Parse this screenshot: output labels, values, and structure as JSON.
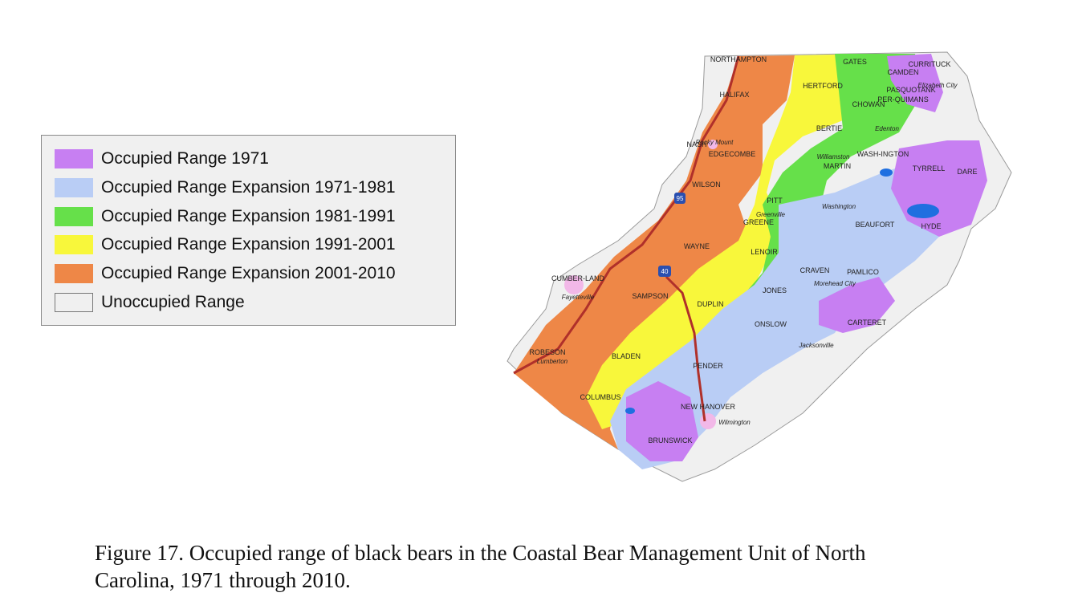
{
  "legend": {
    "items": [
      {
        "label": "Occupied Range 1971",
        "color": "#c77ff2"
      },
      {
        "label": "Occupied Range Expansion 1971-1981",
        "color": "#b9cdf5"
      },
      {
        "label": "Occupied Range Expansion 1981-1991",
        "color": "#66e04a"
      },
      {
        "label": "Occupied Range Expansion 1991-2001",
        "color": "#f8f73b"
      },
      {
        "label": "Occupied Range Expansion 2001-2010",
        "color": "#ee8747"
      },
      {
        "label": "Unoccupied Range",
        "color": "#f0f0f0"
      }
    ]
  },
  "map": {
    "colors": {
      "range_1971": "#c77ff2",
      "exp_1971_1981": "#b9cdf5",
      "exp_1981_1991": "#66e04a",
      "exp_1991_2001": "#f8f73b",
      "exp_2001_2010": "#ee8747",
      "unoccupied": "#f0f0f0",
      "urban": "#f2b8e8",
      "water": "#1f6fe0",
      "highway": "#b0302a",
      "boundary": "#8a8a8a"
    },
    "counties": [
      "NORTHAMPTON",
      "GATES",
      "CAMDEN",
      "CURRITUCK",
      "HERTFORD",
      "PASQUOTANK",
      "HALIFAX",
      "PER-QUIMANS",
      "CHOWAN",
      "BERTIE",
      "NASH",
      "EDGECOMBE",
      "MARTIN",
      "WASH-INGTON",
      "TYRRELL",
      "DARE",
      "WILSON",
      "PITT",
      "GREENE",
      "BEAUFORT",
      "HYDE",
      "WAYNE",
      "LENOIR",
      "CUMBER-LAND",
      "SAMPSON",
      "CRAVEN",
      "PAMLICO",
      "JONES",
      "DUPLIN",
      "ONSLOW",
      "CARTERET",
      "ROBESON",
      "BLADEN",
      "PENDER",
      "COLUMBUS",
      "NEW HANOVER",
      "BRUNSWICK"
    ],
    "cities": [
      "Elizabeth City",
      "Edenton",
      "Rocky Mount",
      "Williamston",
      "Greenville",
      "Washington",
      "Fayetteville",
      "Morehead City",
      "Jacksonville",
      "Lumberton",
      "Wilmington"
    ],
    "highways": [
      "95",
      "40"
    ]
  },
  "caption": {
    "line1": "Figure 17.  Occupied range of black bears in the Coastal Bear Management Unit of North",
    "line2": "Carolina, 1971 through 2010."
  }
}
